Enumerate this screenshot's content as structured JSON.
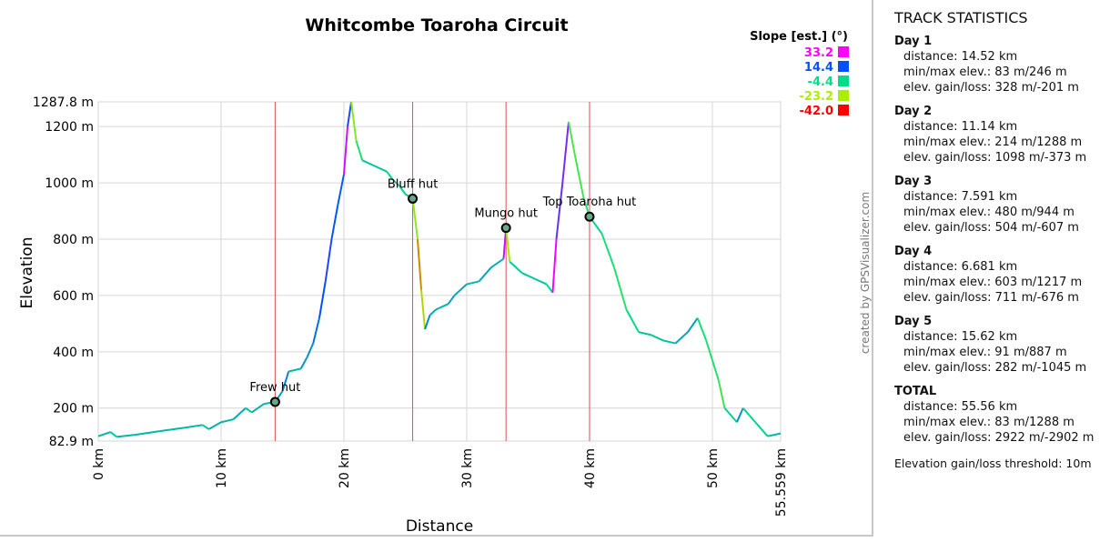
{
  "chart_data": {
    "type": "line",
    "title": "Whitcombe Toaroha Circuit",
    "xlabel": "Distance",
    "ylabel": "Elevation",
    "xlim": [
      0,
      55.559
    ],
    "ylim": [
      82.9,
      1287.8
    ],
    "x_ticks": [
      "0 km",
      "10 km",
      "20 km",
      "30 km",
      "40 km",
      "50 km",
      "55.559 km"
    ],
    "x_tick_values": [
      0,
      10,
      20,
      30,
      40,
      50,
      55.559
    ],
    "y_ticks": [
      "82.9 m",
      "200 m",
      "400 m",
      "600 m",
      "800 m",
      "1000 m",
      "1200 m",
      "1287.8 m"
    ],
    "y_tick_values": [
      82.9,
      200,
      400,
      600,
      800,
      1000,
      1200,
      1287.8
    ],
    "grid": true,
    "legend": {
      "title": "Slope [est.] (°)",
      "placement": "top-right",
      "entries": [
        {
          "label": "33.2",
          "color": "#ff00ff"
        },
        {
          "label": "14.4",
          "color": "#0050ff"
        },
        {
          "label": "-4.4",
          "color": "#00dd88"
        },
        {
          "label": "-23.2",
          "color": "#aaee00"
        },
        {
          "label": "-42.0",
          "color": "#ff0000"
        }
      ]
    },
    "series": [
      {
        "name": "Elevation profile",
        "x": [
          0,
          1,
          1.5,
          3,
          5,
          7,
          8.5,
          9,
          10,
          11,
          12,
          12.5,
          13.5,
          14.4,
          15,
          15.5,
          16.5,
          17,
          17.5,
          18,
          18.5,
          19,
          19.5,
          20,
          20.3,
          20.6,
          21,
          21.5,
          22.5,
          23.5,
          24,
          24.5,
          25,
          25.6,
          26,
          26.3,
          26.6,
          27,
          27.5,
          28.5,
          29,
          30,
          31,
          32,
          33,
          33.2,
          33.5,
          34.5,
          35.5,
          36.5,
          37,
          37.3,
          37.8,
          38.3,
          38.8,
          39.5,
          40,
          41,
          42,
          43,
          44,
          45,
          46,
          47,
          48,
          48.8,
          49.5,
          50.5,
          51,
          52,
          52.5,
          53.5,
          54.5,
          55.559
        ],
        "y": [
          100,
          115,
          98,
          105,
          118,
          130,
          140,
          125,
          150,
          160,
          200,
          185,
          215,
          222,
          260,
          330,
          340,
          380,
          430,
          520,
          650,
          800,
          920,
          1030,
          1200,
          1288,
          1150,
          1080,
          1060,
          1040,
          1010,
          990,
          960,
          944,
          800,
          620,
          480,
          530,
          550,
          570,
          600,
          640,
          650,
          700,
          730,
          840,
          720,
          680,
          660,
          640,
          610,
          800,
          1000,
          1217,
          1100,
          950,
          880,
          820,
          700,
          550,
          470,
          460,
          440,
          430,
          470,
          520,
          440,
          300,
          200,
          150,
          200,
          150,
          100,
          110
        ]
      }
    ],
    "waypoints": [
      {
        "name": "Frew hut",
        "x": 14.4,
        "y": 222
      },
      {
        "name": "Bluff hut",
        "x": 25.6,
        "y": 944
      },
      {
        "name": "Mungo hut",
        "x": 33.2,
        "y": 840
      },
      {
        "name": "Top Toaroha hut",
        "x": 40.0,
        "y": 880
      }
    ],
    "credit": "created by GPSVisualizer.com"
  },
  "stats": {
    "title": "TRACK STATISTICS",
    "days": [
      {
        "title": "Day 1",
        "distance": "distance: 14.52 km",
        "minmax": "min/max elev.: 83 m/246 m",
        "gainloss": "elev. gain/loss: 328 m/-201 m"
      },
      {
        "title": "Day 2",
        "distance": "distance: 11.14 km",
        "minmax": "min/max elev.: 214 m/1288 m",
        "gainloss": "elev. gain/loss: 1098 m/-373 m"
      },
      {
        "title": "Day 3",
        "distance": "distance: 7.591 km",
        "minmax": "min/max elev.: 480 m/944 m",
        "gainloss": "elev. gain/loss: 504 m/-607 m"
      },
      {
        "title": "Day 4",
        "distance": "distance: 6.681 km",
        "minmax": "min/max elev.: 603 m/1217 m",
        "gainloss": "elev. gain/loss: 711 m/-676 m"
      },
      {
        "title": "Day 5",
        "distance": "distance: 15.62 km",
        "minmax": "min/max elev.: 91 m/887 m",
        "gainloss": "elev. gain/loss: 282 m/-1045 m"
      },
      {
        "title": "TOTAL",
        "distance": "distance: 55.56 km",
        "minmax": "min/max elev.: 83 m/1288 m",
        "gainloss": "elev. gain/loss: 2922 m/-2902 m"
      }
    ],
    "threshold": "Elevation gain/loss threshold: 10m"
  }
}
